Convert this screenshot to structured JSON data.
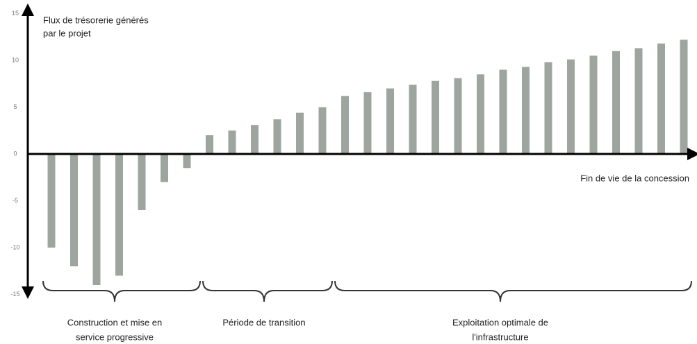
{
  "chart_data": {
    "type": "bar",
    "y_axis_label": [
      "Flux de trésorerie générés",
      "par le projet"
    ],
    "x_axis_label": "Fin de vie de la concession",
    "annotations": [
      [
        "Construction et mise en",
        "service progressive"
      ],
      [
        "Période de transition"
      ],
      [
        "Exploitation optimale de",
        "l'infrastructure"
      ]
    ],
    "values": [
      -10,
      -12,
      -14,
      -13,
      -6,
      -3,
      -1.5,
      2,
      2.5,
      3.1,
      3.7,
      4.4,
      5,
      6.2,
      6.6,
      7,
      7.4,
      7.8,
      8.1,
      8.5,
      9,
      9.3,
      9.8,
      10.1,
      10.5,
      11,
      11.3,
      11.8,
      12.2
    ],
    "color": "#9ea59f",
    "ylim": [
      -15,
      15
    ],
    "yticks": [
      -15,
      -10,
      -5,
      0,
      5,
      10,
      15
    ],
    "grid": false
  }
}
